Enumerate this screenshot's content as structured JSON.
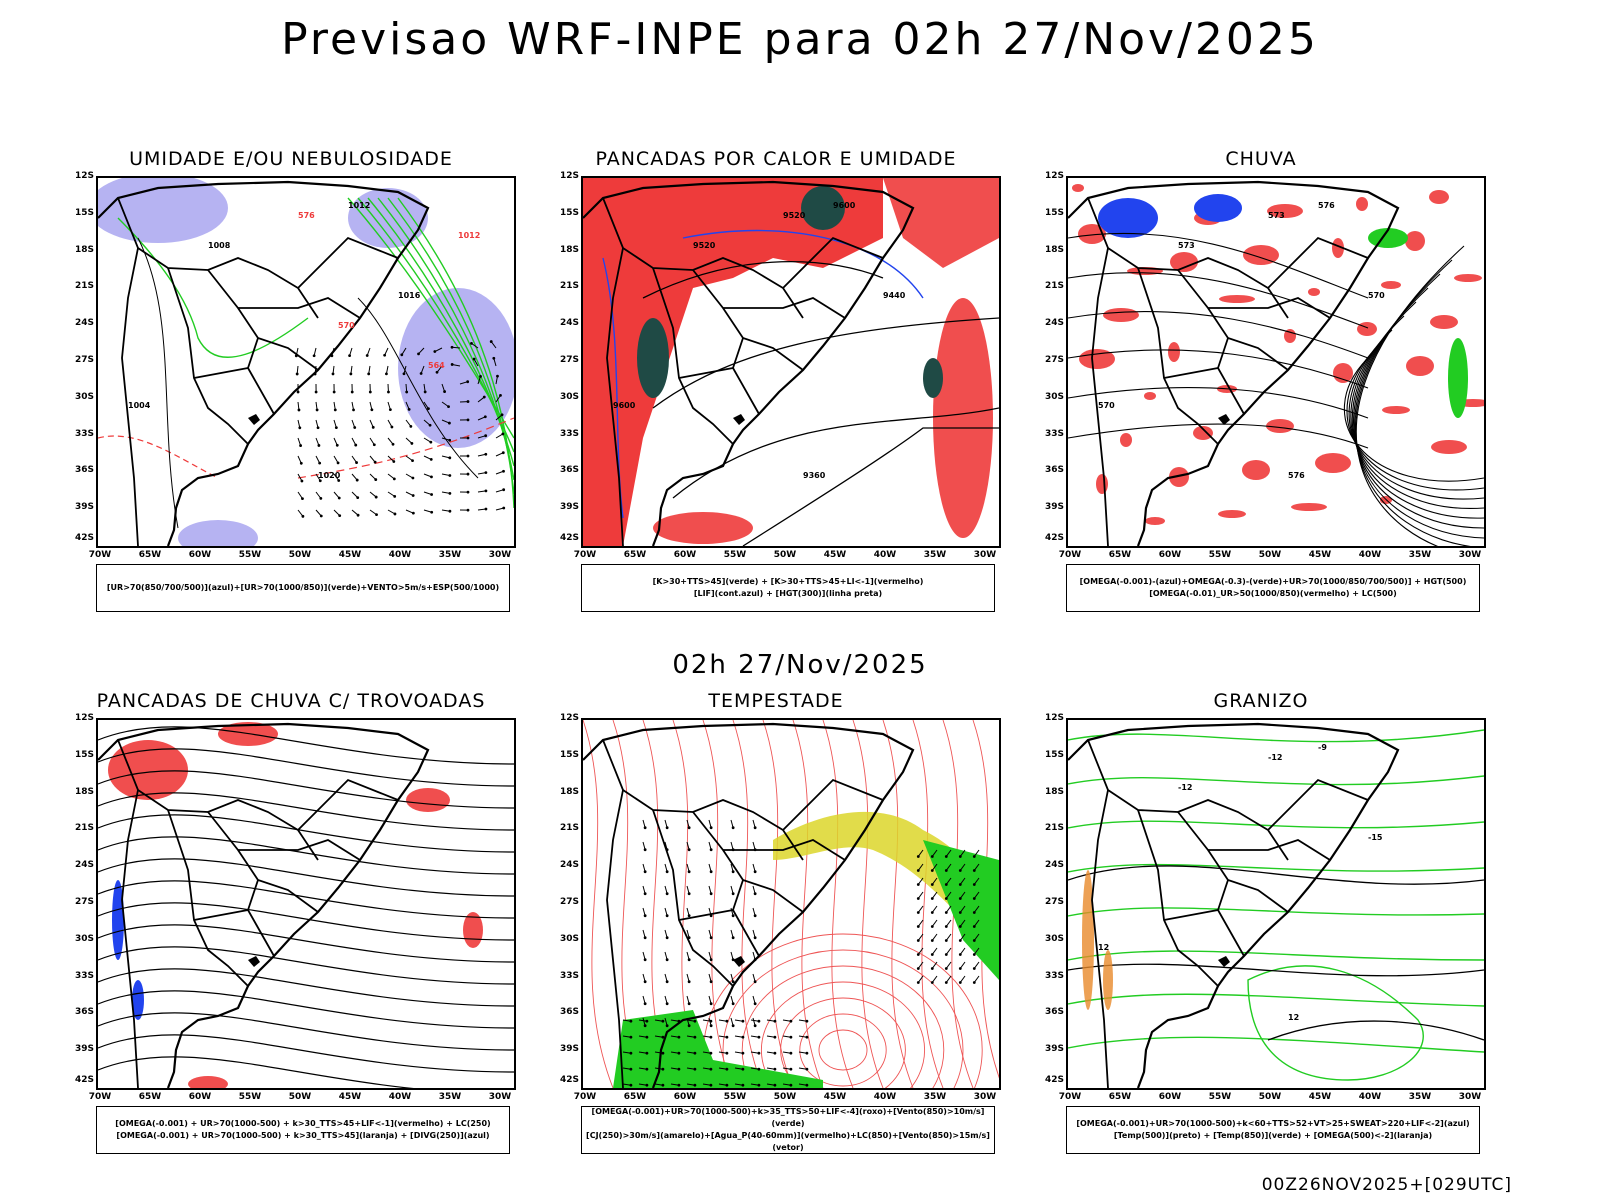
{
  "header": {
    "title": "Previsao WRF-INPE  para 02h 27/Nov/2025"
  },
  "middle_label": "02h 27/Nov/2025",
  "footer": "00Z26NOV2025+[029UTC]",
  "lat_labels": [
    "12S",
    "15S",
    "18S",
    "21S",
    "24S",
    "27S",
    "30S",
    "33S",
    "36S",
    "39S",
    "42S"
  ],
  "lon_labels": [
    "70W",
    "65W",
    "60W",
    "55W",
    "50W",
    "45W",
    "40W",
    "35W",
    "30W"
  ],
  "colors": {
    "red": "#ee3b3b",
    "green": "#22cc22",
    "blue": "#2244ee",
    "lavender": "#a9a6f0",
    "darkteal": "#1f4a45",
    "yellow": "#dcd62a",
    "orange": "#e88a2a"
  },
  "panels": [
    {
      "id": "umidade",
      "title": "UMIDADE E/OU NEBULOSIDADE",
      "legend": [
        "[UR>70(850/700/500)](azul)+[UR>70(1000/850)](verde)+VENTO>5m/s+ESP(500/1000)"
      ],
      "contour_labels": [
        "1012",
        "1008",
        "1016",
        "1020",
        "1004",
        "576",
        "570",
        "564",
        "1012"
      ]
    },
    {
      "id": "pancadas_calor",
      "title": "PANCADAS POR CALOR E UMIDADE",
      "legend": [
        "[K>30+TTS>45](verde) + [K>30+TTS>45+LI<-1](vermelho)",
        "[LIF](cont.azul) + [HGT(300)](linha preta)"
      ],
      "contour_labels": [
        "9600",
        "9520",
        "9440",
        "9360",
        "9600",
        "9520"
      ]
    },
    {
      "id": "chuva",
      "title": "CHUVA",
      "legend": [
        "[OMEGA(-0.001)-(azul)+OMEGA(-0.3)-(verde)+UR>70(1000/850/700/500)] + HGT(500)",
        "[OMEGA(-0.01)_UR>50(1000/850)(vermelho) + LC(500)"
      ],
      "contour_labels": [
        "576",
        "573",
        "570",
        "576",
        "570",
        "573"
      ]
    },
    {
      "id": "trovoadas",
      "title": "PANCADAS DE CHUVA C/ TROVOADAS",
      "legend": [
        "[OMEGA(-0.001) + UR>70(1000-500) + k>30_TTS>45+LIF<-1](vermelho) + LC(250)",
        "[OMEGA(-0.001) + UR>70(1000-500) + k>30_TTS>45](laranja) + [DIVG(250)](azul)"
      ],
      "contour_labels": []
    },
    {
      "id": "tempestade",
      "title": "TEMPESTADE",
      "legend": [
        "[OMEGA(-0.001)+UR>70(1000-500)+k>35_TTS>50+LIF<-4](roxo)+[Vento(850)>10m/s](verde)",
        "[CJ(250)>30m/s](amarelo)+[Agua_P(40-60mm)](vermelho)+LC(850)+[Vento(850)>15m/s](vetor)"
      ],
      "contour_labels": []
    },
    {
      "id": "granizo",
      "title": "GRANIZO",
      "legend": [
        "[OMEGA(-0.001)+UR>70(1000-500)+k<60+TTS>52+VT>25+SWEAT>220+LIF<-2](azul)",
        "[Temp(500)](preto) + [Temp(850)](verde) + [OMEGA(500)<-2](laranja)"
      ],
      "contour_labels": [
        "-9",
        "-12",
        "-15",
        "12",
        "12",
        "-12"
      ]
    }
  ]
}
